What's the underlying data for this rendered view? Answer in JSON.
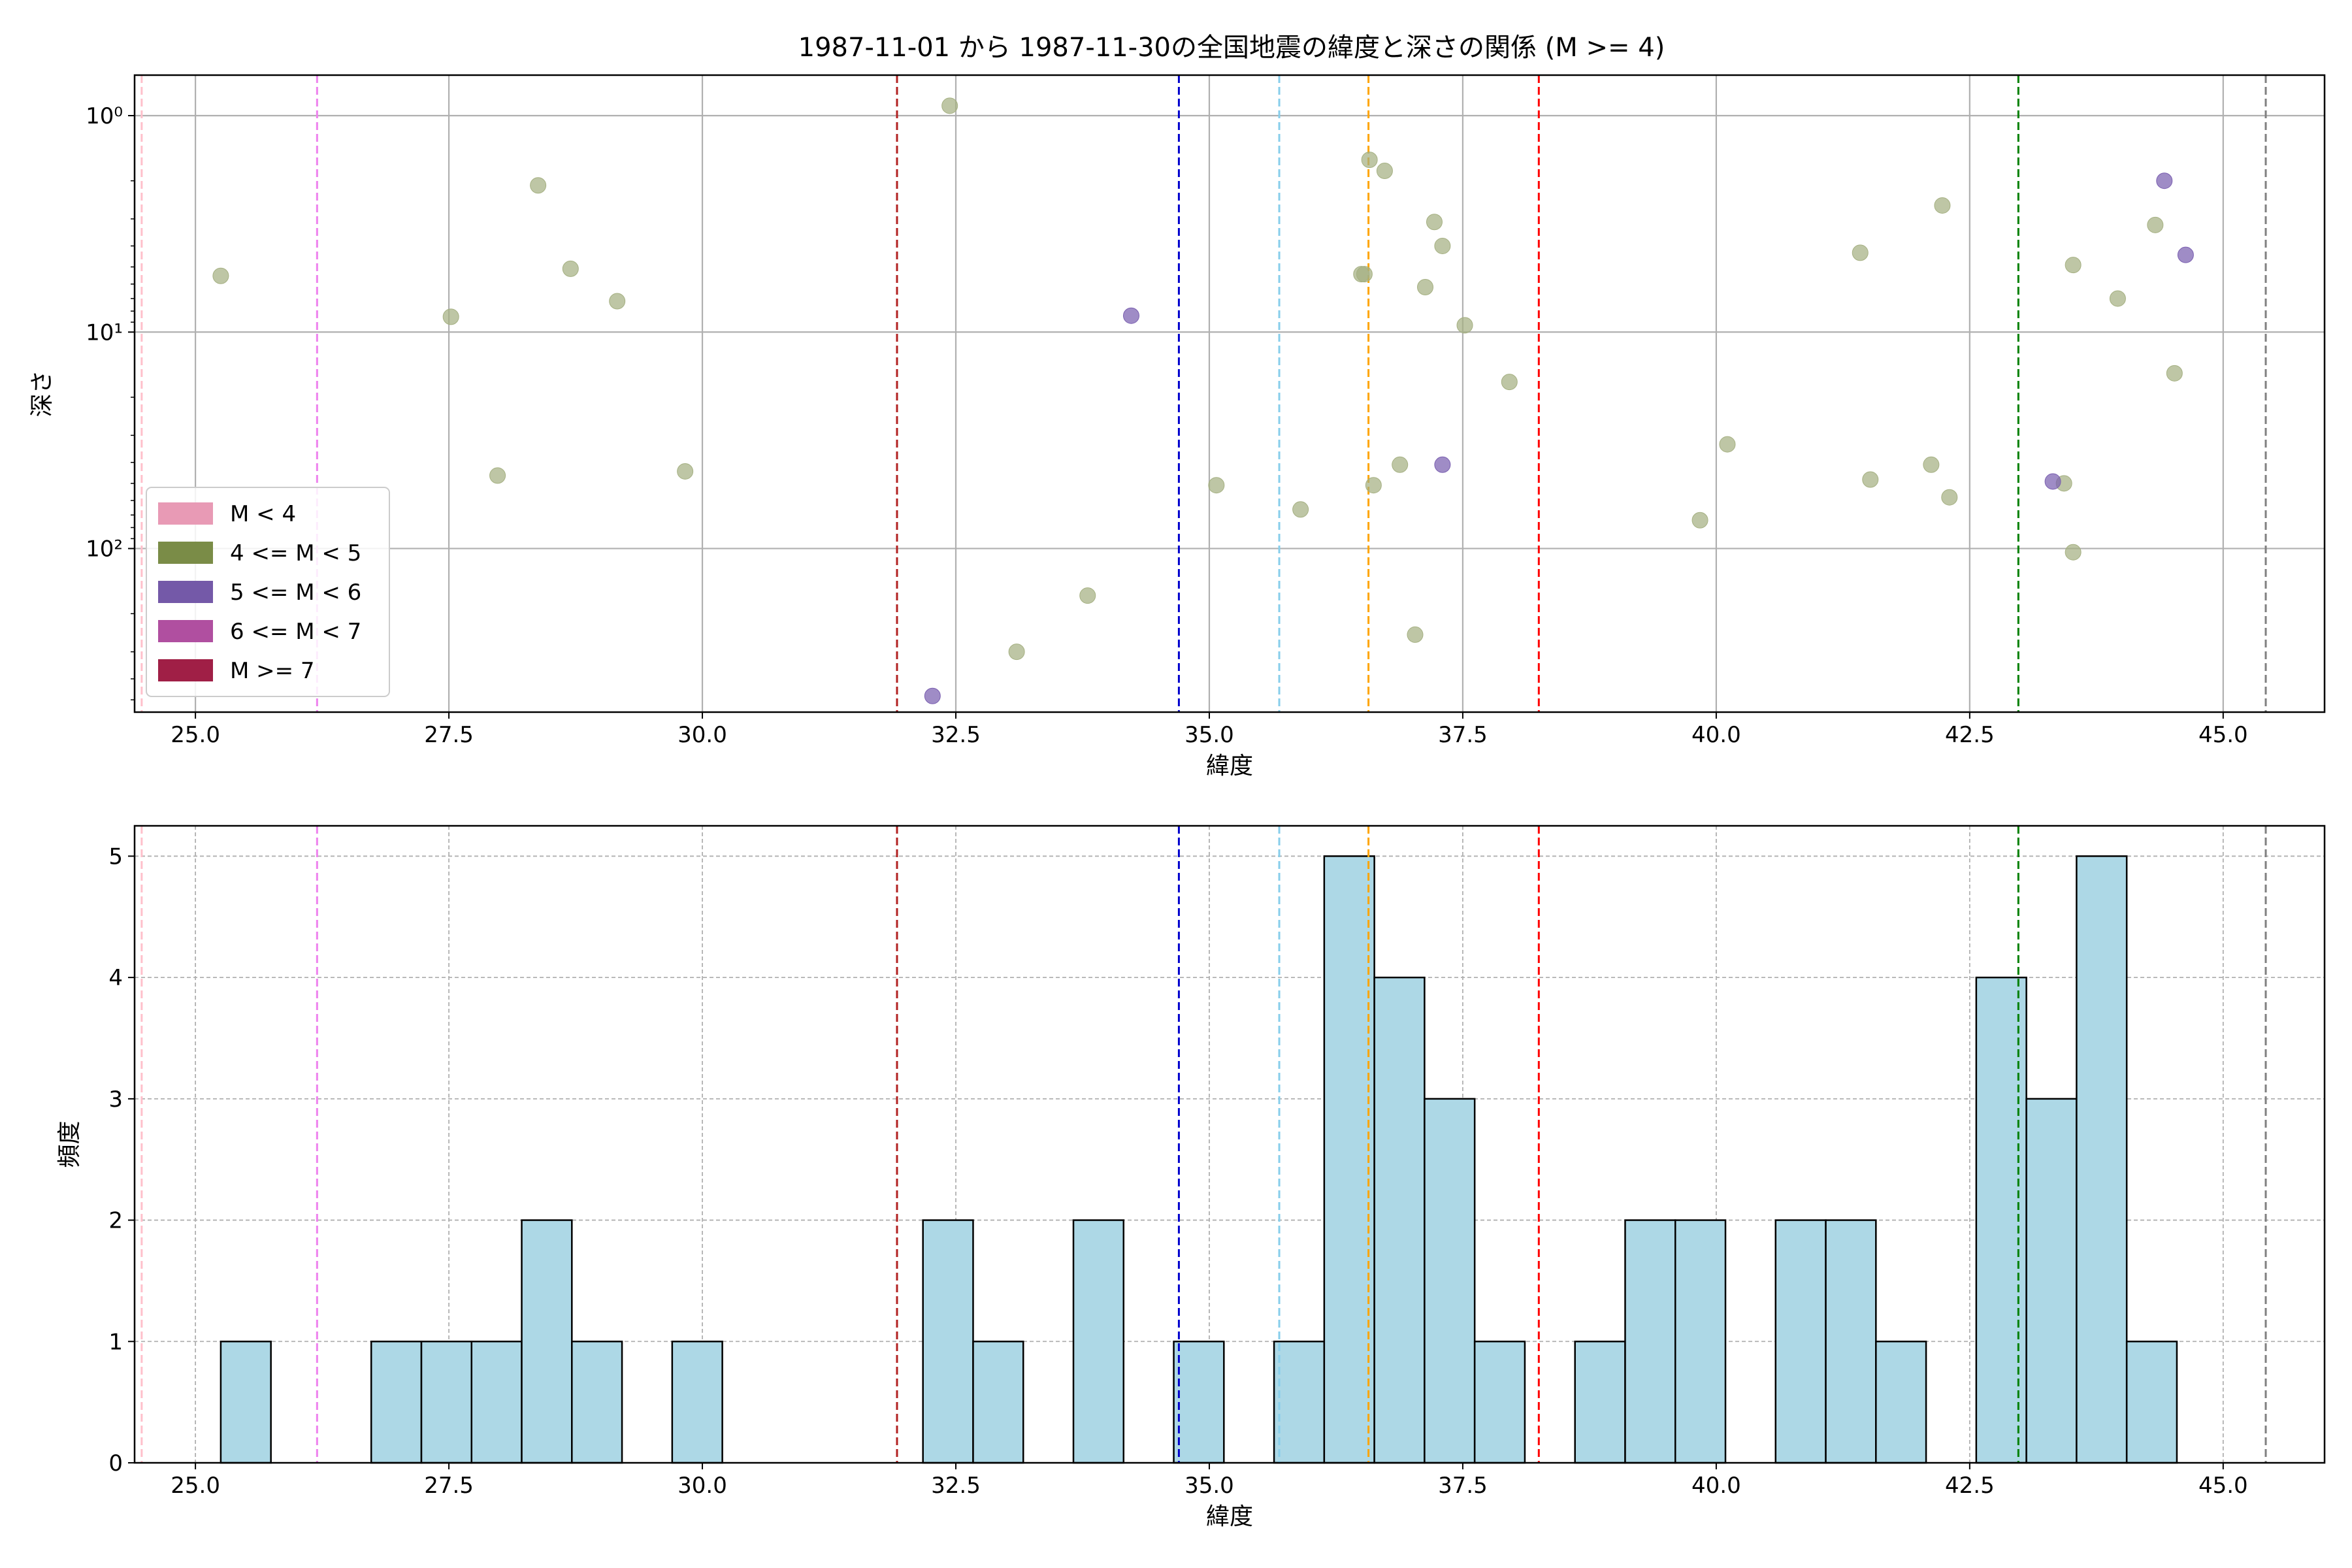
{
  "title": "1987-11-01 から 1987-11-30の全国地震の緯度と深さの関係 (M >= 4)",
  "colors": {
    "scatter_m4_5": "#a5b082",
    "scatter_m5_6": "#7a5fb0",
    "hist_fill": "#add8e6",
    "grid": "#b0b0b0"
  },
  "legend": {
    "placement": "lower-left",
    "items": [
      {
        "label": "M < 4",
        "color": "#e89ab5"
      },
      {
        "label": "4 <= M < 5",
        "color": "#7a8c47"
      },
      {
        "label": "5 <= M < 6",
        "color": "#7459a8"
      },
      {
        "label": "6 <= M < 7",
        "color": "#b04fa0"
      },
      {
        "label": "M >= 7",
        "color": "#a01f46"
      }
    ]
  },
  "chart_data": [
    {
      "type": "scatter",
      "xlabel": "緯度",
      "ylabel": "深さ",
      "xlim": [
        24.4,
        46.0
      ],
      "ylim": [
        570,
        0.65
      ],
      "yscale": "log",
      "y_inverted": true,
      "xticks": [
        25.0,
        27.5,
        30.0,
        32.5,
        35.0,
        37.5,
        40.0,
        42.5,
        45.0
      ],
      "xtick_labels": [
        "25.0",
        "27.5",
        "30.0",
        "32.5",
        "35.0",
        "37.5",
        "40.0",
        "42.5",
        "45.0"
      ],
      "yticks": [
        1,
        10,
        100
      ],
      "ytick_labels": [
        "10⁰",
        "10¹",
        "10²"
      ],
      "grid": true,
      "vlines": [
        {
          "x": 24.47,
          "color": "#ffc0cb"
        },
        {
          "x": 26.2,
          "color": "#ee82ee"
        },
        {
          "x": 31.92,
          "color": "#b22222"
        },
        {
          "x": 34.7,
          "color": "#0000cd"
        },
        {
          "x": 35.69,
          "color": "#87ceeb"
        },
        {
          "x": 36.57,
          "color": "#ffa500"
        },
        {
          "x": 38.25,
          "color": "#ff0000"
        },
        {
          "x": 42.98,
          "color": "#008000"
        },
        {
          "x": 45.42,
          "color": "#808080"
        }
      ],
      "series": [
        {
          "magnitude_class": "4 <= M < 5",
          "points": [
            [
              25.25,
              5.5
            ],
            [
              27.52,
              8.5
            ],
            [
              27.98,
              46
            ],
            [
              28.38,
              2.1
            ],
            [
              28.7,
              5.1
            ],
            [
              29.16,
              7.2
            ],
            [
              29.83,
              44
            ],
            [
              32.44,
              0.9
            ],
            [
              33.1,
              300
            ],
            [
              33.8,
              165
            ],
            [
              35.07,
              51
            ],
            [
              35.9,
              66
            ],
            [
              36.5,
              5.4
            ],
            [
              36.53,
              5.4
            ],
            [
              36.58,
              1.6
            ],
            [
              36.62,
              51
            ],
            [
              36.73,
              1.8
            ],
            [
              36.88,
              41
            ],
            [
              37.03,
              250
            ],
            [
              37.13,
              6.2
            ],
            [
              37.22,
              3.1
            ],
            [
              37.3,
              4.0
            ],
            [
              37.52,
              9.3
            ],
            [
              37.96,
              17
            ],
            [
              39.84,
              74
            ],
            [
              40.11,
              33
            ],
            [
              41.42,
              4.3
            ],
            [
              41.52,
              48
            ],
            [
              42.12,
              41
            ],
            [
              42.23,
              2.6
            ],
            [
              42.3,
              58
            ],
            [
              43.43,
              50
            ],
            [
              43.52,
              4.9
            ],
            [
              43.52,
              104
            ],
            [
              43.96,
              7.0
            ],
            [
              44.33,
              3.2
            ],
            [
              44.52,
              15.5
            ]
          ]
        },
        {
          "magnitude_class": "5 <= M < 6",
          "points": [
            [
              32.27,
              480
            ],
            [
              34.23,
              8.4
            ],
            [
              37.3,
              41
            ],
            [
              43.32,
              49
            ],
            [
              44.42,
              2.0
            ],
            [
              44.63,
              4.4
            ]
          ]
        }
      ]
    },
    {
      "type": "bar",
      "subtype": "histogram",
      "xlabel": "緯度",
      "ylabel": "頻度",
      "xlim": [
        24.4,
        46.0
      ],
      "ylim": [
        0,
        5.25
      ],
      "xticks": [
        25.0,
        27.5,
        30.0,
        32.5,
        35.0,
        37.5,
        40.0,
        42.5,
        45.0
      ],
      "xtick_labels": [
        "25.0",
        "27.5",
        "30.0",
        "32.5",
        "35.0",
        "37.5",
        "40.0",
        "42.5",
        "45.0"
      ],
      "yticks": [
        0,
        1,
        2,
        3,
        4,
        5
      ],
      "ytick_labels": [
        "0",
        "1",
        "2",
        "3",
        "4",
        "5"
      ],
      "grid": true,
      "vlines": [
        {
          "x": 24.47,
          "color": "#ffc0cb"
        },
        {
          "x": 26.2,
          "color": "#ee82ee"
        },
        {
          "x": 31.92,
          "color": "#b22222"
        },
        {
          "x": 34.7,
          "color": "#0000cd"
        },
        {
          "x": 35.69,
          "color": "#87ceeb"
        },
        {
          "x": 36.57,
          "color": "#ffa500"
        },
        {
          "x": 38.25,
          "color": "#ff0000"
        },
        {
          "x": 42.98,
          "color": "#008000"
        },
        {
          "x": 45.42,
          "color": "#808080"
        }
      ],
      "bin_start": 25.25,
      "bin_width": 0.4947,
      "values": [
        1,
        0,
        0,
        1,
        1,
        1,
        2,
        1,
        0,
        1,
        0,
        0,
        0,
        0,
        2,
        1,
        0,
        2,
        0,
        1,
        0,
        1,
        5,
        4,
        3,
        1,
        0,
        1,
        2,
        2,
        0,
        2,
        2,
        1,
        0,
        4,
        3,
        5,
        1
      ]
    }
  ]
}
